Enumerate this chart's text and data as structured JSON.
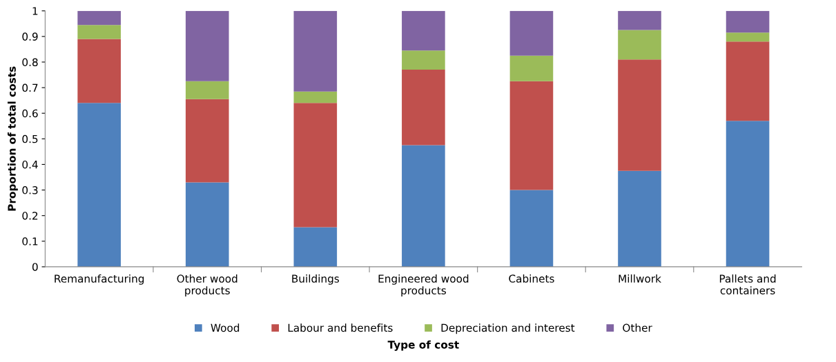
{
  "chart_data": {
    "type": "bar",
    "stacked": true,
    "xlabel": "Type of cost",
    "ylabel": "Proportion of total costs",
    "categories": [
      "Remanufacturing",
      "Other wood products",
      "Buildings",
      "Engineered wood products",
      "Cabinets",
      "Millwork",
      "Pallets and containers"
    ],
    "series": [
      {
        "name": "Wood",
        "color": "#4f81bd",
        "values": [
          0.64,
          0.33,
          0.155,
          0.475,
          0.3,
          0.375,
          0.57
        ]
      },
      {
        "name": "Labour and benefits",
        "color": "#c0504d",
        "values": [
          0.25,
          0.325,
          0.485,
          0.295,
          0.425,
          0.435,
          0.31
        ]
      },
      {
        "name": "Depreciation and interest",
        "color": "#9bbb59",
        "values": [
          0.055,
          0.07,
          0.045,
          0.075,
          0.1,
          0.115,
          0.035
        ]
      },
      {
        "name": "Other",
        "color": "#8064a2",
        "values": [
          0.055,
          0.275,
          0.315,
          0.155,
          0.175,
          0.075,
          0.085
        ]
      }
    ],
    "ylim": [
      0,
      1
    ],
    "yticks": [
      0,
      0.1,
      0.2,
      0.3,
      0.4,
      0.5,
      0.6,
      0.7,
      0.8,
      0.9,
      1
    ],
    "grid": false,
    "legend": "bottom"
  }
}
